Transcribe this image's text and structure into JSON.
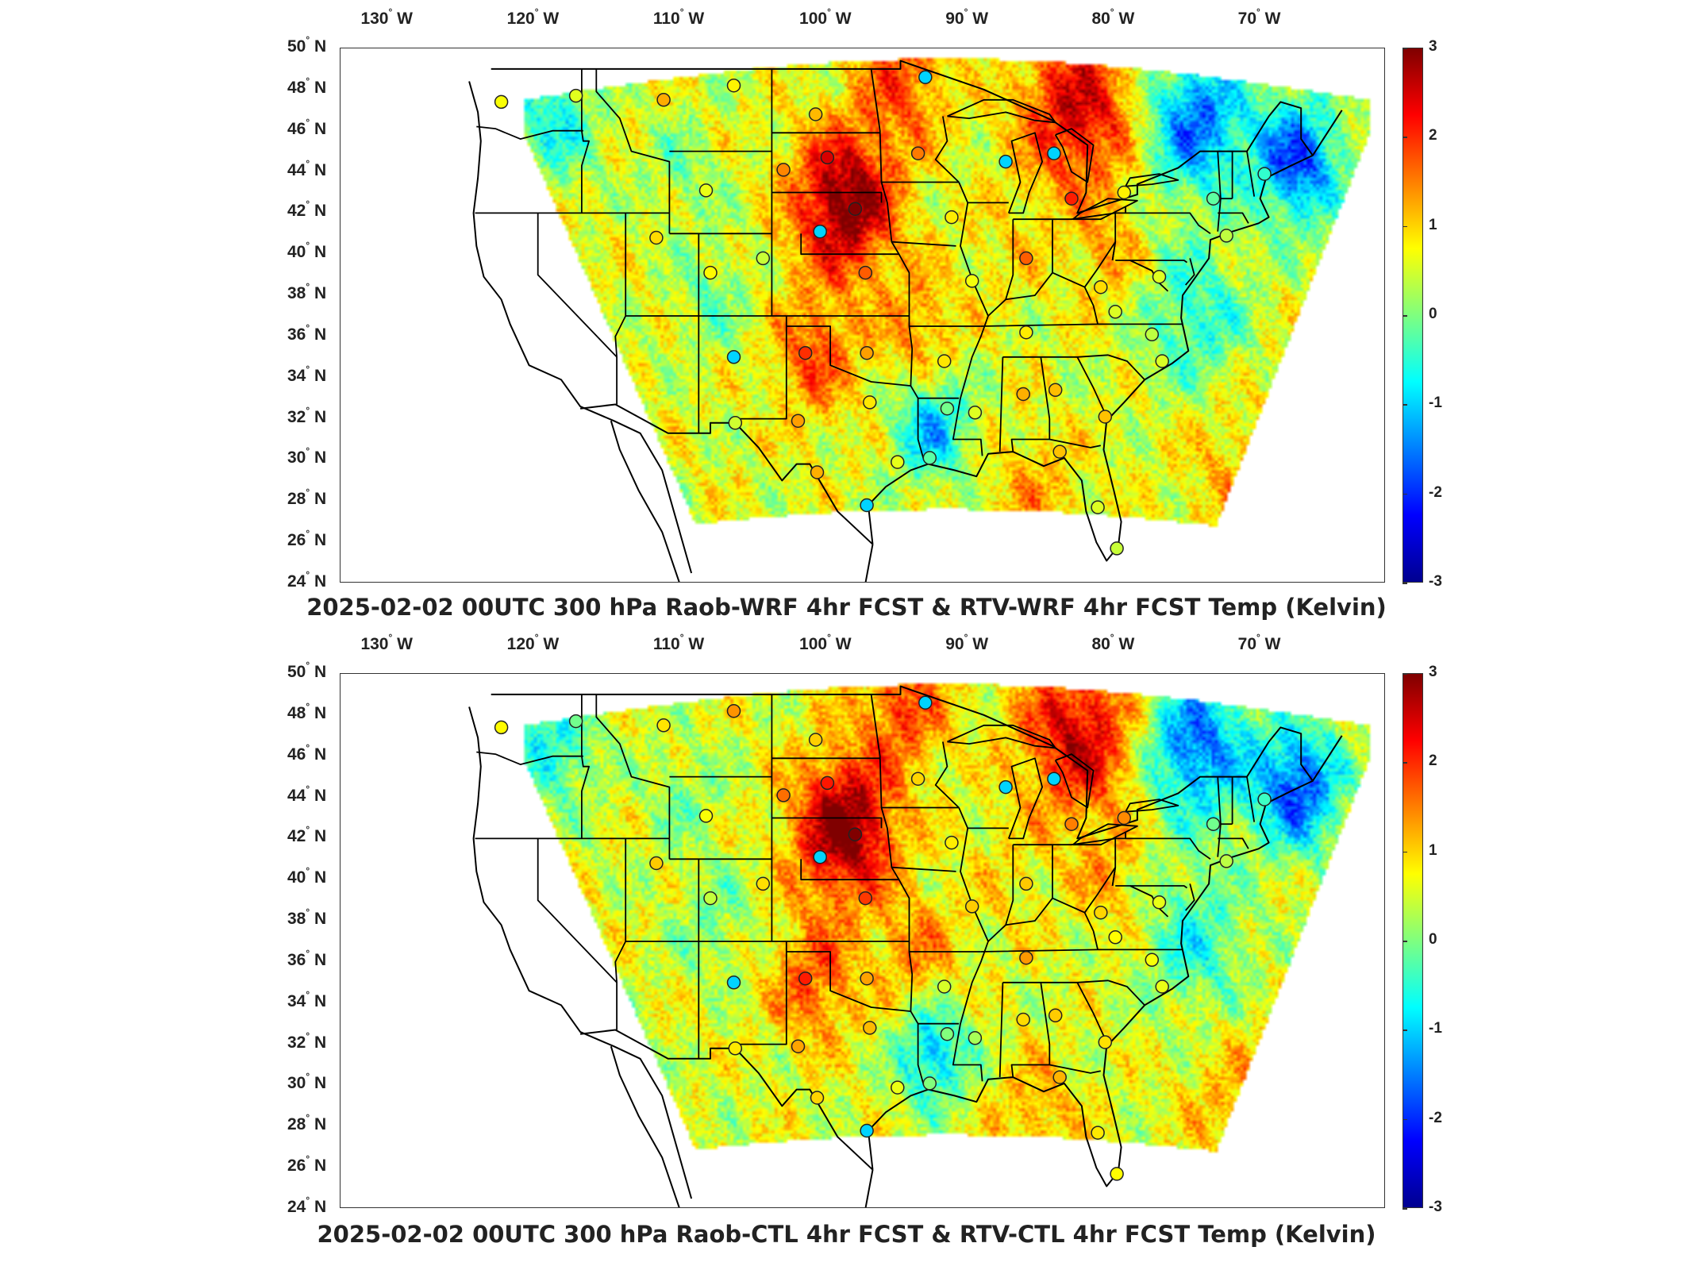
{
  "panels": [
    {
      "title": "2025-02-02 00UTC 300 hPa Raob-WRF 4hr FCST & RTV-WRF 4hr FCST Temp (Kelvin)",
      "seed": 7
    },
    {
      "title": "2025-02-02 00UTC 300 hPa Raob-CTL 4hr FCST & RTV-CTL 4hr FCST Temp (Kelvin)",
      "seed": 13
    }
  ],
  "longitude_labels": [
    "130",
    "120",
    "110",
    "100",
    "90",
    "80",
    "70"
  ],
  "longitude_suffix": "W",
  "latitude_labels": [
    "50",
    "48",
    "46",
    "44",
    "42",
    "40",
    "38",
    "36",
    "34",
    "32",
    "30",
    "28",
    "26",
    "24"
  ],
  "latitude_suffix": "N",
  "colorbar": {
    "labels": [
      "3",
      "2",
      "1",
      "0",
      "-1",
      "-2",
      "-3"
    ],
    "min": -3,
    "max": 3,
    "colormap": "jet"
  },
  "raob_stations": [
    [
      -122.5,
      47.4
    ],
    [
      -117.4,
      47.7
    ],
    [
      -111.4,
      47.5
    ],
    [
      -106.6,
      48.2
    ],
    [
      -101.0,
      46.8
    ],
    [
      -93.5,
      48.6
    ],
    [
      -108.5,
      43.1
    ],
    [
      -103.2,
      44.1
    ],
    [
      -100.2,
      44.7
    ],
    [
      -94.0,
      44.9
    ],
    [
      -88.0,
      44.5
    ],
    [
      -84.7,
      44.9
    ],
    [
      -111.9,
      40.8
    ],
    [
      -100.7,
      41.1
    ],
    [
      -98.3,
      42.2
    ],
    [
      -91.7,
      41.8
    ],
    [
      -83.5,
      42.7
    ],
    [
      -79.9,
      43.0
    ],
    [
      -73.8,
      42.7
    ],
    [
      -70.3,
      43.9
    ],
    [
      -108.2,
      39.1
    ],
    [
      -104.6,
      39.8
    ],
    [
      -97.6,
      39.1
    ],
    [
      -90.3,
      38.7
    ],
    [
      -86.6,
      39.8
    ],
    [
      -81.5,
      38.4
    ],
    [
      -77.5,
      38.9
    ],
    [
      -72.9,
      40.9
    ],
    [
      -106.6,
      35.0
    ],
    [
      -101.7,
      35.2
    ],
    [
      -97.5,
      35.2
    ],
    [
      -92.2,
      34.8
    ],
    [
      -86.6,
      36.2
    ],
    [
      -80.5,
      37.2
    ],
    [
      -77.3,
      34.8
    ],
    [
      -78.0,
      36.1
    ],
    [
      -106.5,
      31.8
    ],
    [
      -102.2,
      31.9
    ],
    [
      -97.3,
      32.8
    ],
    [
      -92.0,
      32.5
    ],
    [
      -90.1,
      32.3
    ],
    [
      -86.8,
      33.2
    ],
    [
      -84.6,
      33.4
    ],
    [
      -81.2,
      32.1
    ],
    [
      -100.9,
      29.4
    ],
    [
      -97.5,
      27.8
    ],
    [
      -93.2,
      30.1
    ],
    [
      -84.3,
      30.4
    ],
    [
      -81.7,
      27.7
    ],
    [
      -80.4,
      25.7
    ],
    [
      -95.4,
      29.9
    ]
  ],
  "highlighted_stations": [
    [
      -93.5,
      48.6
    ],
    [
      -88.0,
      44.5
    ],
    [
      -84.7,
      44.9
    ],
    [
      -100.7,
      41.1
    ],
    [
      -106.6,
      35.0
    ],
    [
      -97.5,
      27.8
    ]
  ]
}
